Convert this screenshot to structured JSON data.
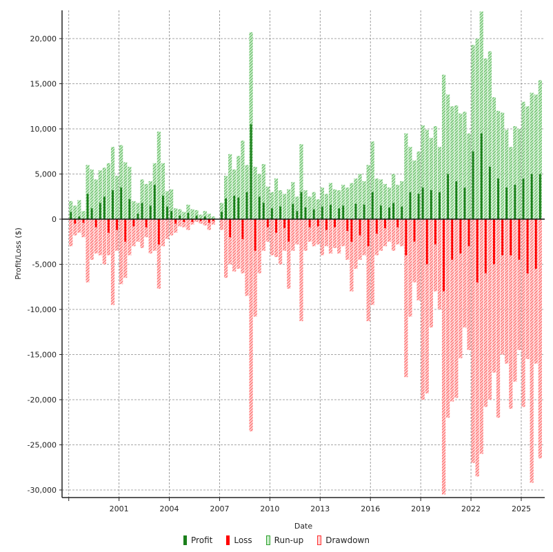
{
  "chart_data": {
    "type": "bar",
    "title": "",
    "xlabel": "Date",
    "ylabel": "Profit/Loss ($)",
    "ylim": [
      -30800,
      23500
    ],
    "xlim": [
      1997.6,
      2026.4
    ],
    "grid": true,
    "legend_position": "bottom",
    "yticks": [
      20000,
      15000,
      10000,
      5000,
      0,
      -5000,
      -10000,
      -15000,
      -20000,
      -25000,
      -30000
    ],
    "ytick_labels": [
      "20,000",
      "15,000",
      "10,000",
      "5,000",
      "0",
      "-5,000",
      "-10,000",
      "-15,000",
      "-20,000",
      "-25,000",
      "-30,000"
    ],
    "xticks": [
      2001,
      2004,
      2007,
      2010,
      2013,
      2016,
      2019,
      2022,
      2025
    ],
    "xtick_labels": [
      "2001",
      "2004",
      "2007",
      "2010",
      "2013",
      "2016",
      "2019",
      "2022",
      "2025"
    ],
    "period": "quarter",
    "start": 1998,
    "legend": [
      {
        "name": "Profit",
        "color": "#1a7f1a"
      },
      {
        "name": "Loss",
        "color": "#ff0000"
      },
      {
        "name": "Run-up",
        "color": "#2ca02c"
      },
      {
        "name": "Drawdown",
        "color": "#ff4040"
      }
    ],
    "runup": [
      2000,
      1500,
      2100,
      900,
      6000,
      5500,
      4400,
      5400,
      5700,
      6200,
      8000,
      4800,
      8200,
      6300,
      5800,
      2000,
      1800,
      4400,
      3900,
      4200,
      6200,
      9700,
      6200,
      3100,
      3300,
      1200,
      1100,
      800,
      1600,
      1100,
      1000,
      500,
      900,
      600,
      300,
      0,
      1800,
      4800,
      7200,
      5500,
      7000,
      8700,
      6000,
      20700,
      5800,
      5000,
      6100,
      3600,
      3000,
      4500,
      3200,
      2800,
      3300,
      4100,
      2500,
      8300,
      3200,
      2500,
      3000,
      2200,
      3500,
      2800,
      4000,
      3300,
      3200,
      3800,
      3500,
      4000,
      4500,
      5000,
      4200,
      6000,
      8600,
      4500,
      4400,
      3900,
      3500,
      5000,
      3800,
      4200,
      9500,
      8000,
      6500,
      7500,
      10400,
      9900,
      9000,
      10300,
      8000,
      16000,
      13800,
      12500,
      12600,
      11700,
      11900,
      9500,
      19300,
      20000,
      23000,
      17800,
      18600,
      13500,
      12000,
      11800,
      9900,
      8000,
      10300,
      10000,
      13000,
      12500,
      14000,
      13800,
      15400
    ],
    "drawdown": [
      -3000,
      -1800,
      -1500,
      -2000,
      -7000,
      -4500,
      -3800,
      -4000,
      -5000,
      -4000,
      -9500,
      -3500,
      -7200,
      -6500,
      -4000,
      -3000,
      -2500,
      -3200,
      -2000,
      -3800,
      -3500,
      -7700,
      -3000,
      -2200,
      -1800,
      -1500,
      -800,
      -900,
      -1200,
      -600,
      -300,
      -500,
      -700,
      -1200,
      -600,
      0,
      -1200,
      -6500,
      -5000,
      -5800,
      -5500,
      -6000,
      -8500,
      -23500,
      -10800,
      -6000,
      -3500,
      -2500,
      -4000,
      -4200,
      -5000,
      -3500,
      -7700,
      -3500,
      -2800,
      -11300,
      -3500,
      -2500,
      -3000,
      -2800,
      -4000,
      -3000,
      -3800,
      -3200,
      -3800,
      -3000,
      -4500,
      -8000,
      -5500,
      -4500,
      -4000,
      -11300,
      -9500,
      -4000,
      -3500,
      -3000,
      -2500,
      -3500,
      -2800,
      -3000,
      -17500,
      -10800,
      -7000,
      -9000,
      -20000,
      -19300,
      -12000,
      -8000,
      -10000,
      -30500,
      -22000,
      -20200,
      -19800,
      -15400,
      -12000,
      -14500,
      -27000,
      -28500,
      -26000,
      -20800,
      -20000,
      -17000,
      -22000,
      -15000,
      -16000,
      -21000,
      -18000,
      -14500,
      -20800,
      -15500,
      -29200,
      -16000,
      -26500
    ],
    "net": [
      800,
      -500,
      300,
      -400,
      2800,
      1200,
      -900,
      1800,
      2500,
      -1500,
      3200,
      -1200,
      3500,
      -2500,
      2200,
      -800,
      600,
      1800,
      -900,
      1500,
      3800,
      -2800,
      2600,
      1400,
      900,
      -500,
      400,
      -300,
      700,
      -300,
      400,
      -200,
      300,
      -400,
      -200,
      0,
      800,
      2300,
      -2000,
      2600,
      2400,
      -2200,
      3000,
      10500,
      -3500,
      2500,
      1800,
      -900,
      1200,
      -1500,
      1400,
      -1000,
      -2500,
      1700,
      900,
      3000,
      1300,
      -900,
      1100,
      -800,
      1400,
      -1200,
      1600,
      -900,
      1200,
      1500,
      -1300,
      -2500,
      1700,
      -1800,
      1600,
      -3000,
      3000,
      -1600,
      1500,
      -1000,
      1300,
      1800,
      -900,
      1400,
      -4000,
      3000,
      -2500,
      2800,
      3500,
      -5000,
      3200,
      -2800,
      3000,
      -8000,
      5000,
      -4500,
      4200,
      -3800,
      3500,
      -3000,
      7500,
      -7000,
      9500,
      -6000,
      5800,
      -5000,
      4500,
      -4000,
      3500,
      -4000,
      3800,
      -4500,
      4500,
      -6000,
      5000,
      -5500,
      5000
    ]
  }
}
